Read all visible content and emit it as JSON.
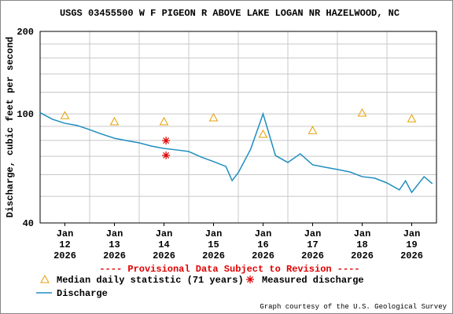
{
  "chart_data": {
    "type": "line",
    "title": "USGS 03455500 W F PIGEON R ABOVE LAKE LOGAN NR HAZELWOOD, NC",
    "ylabel": "Discharge, cubic feet per second",
    "yscale": "log",
    "ylim": [
      40,
      200
    ],
    "yticks": [
      40,
      100,
      200
    ],
    "minor_yticks": [
      50,
      60,
      70,
      80,
      90,
      120,
      140,
      160,
      180
    ],
    "xlim": [
      "2026-01-12T00:00",
      "2026-01-20T00:00"
    ],
    "xticks": [
      {
        "value": "2026-01-12T12:00",
        "label": [
          "Jan",
          "12",
          "2026"
        ]
      },
      {
        "value": "2026-01-13T12:00",
        "label": [
          "Jan",
          "13",
          "2026"
        ]
      },
      {
        "value": "2026-01-14T12:00",
        "label": [
          "Jan",
          "14",
          "2026"
        ]
      },
      {
        "value": "2026-01-15T12:00",
        "label": [
          "Jan",
          "15",
          "2026"
        ]
      },
      {
        "value": "2026-01-16T12:00",
        "label": [
          "Jan",
          "16",
          "2026"
        ]
      },
      {
        "value": "2026-01-17T12:00",
        "label": [
          "Jan",
          "17",
          "2026"
        ]
      },
      {
        "value": "2026-01-18T12:00",
        "label": [
          "Jan",
          "18",
          "2026"
        ]
      },
      {
        "value": "2026-01-19T12:00",
        "label": [
          "Jan",
          "19",
          "2026"
        ]
      }
    ],
    "xgrid": [
      "2026-01-13T00:00",
      "2026-01-14T00:00",
      "2026-01-15T00:00",
      "2026-01-16T00:00",
      "2026-01-17T00:00",
      "2026-01-18T00:00",
      "2026-01-19T00:00"
    ],
    "grid": true,
    "note": "---- Provisional Data Subject to Revision ----",
    "credit": "Graph courtesy of the U.S. Geological Survey",
    "series": [
      {
        "name": "Discharge",
        "color": "#1f8ec0",
        "style": "line",
        "x": [
          "2026-01-12T00:00",
          "2026-01-12T06:00",
          "2026-01-12T12:00",
          "2026-01-12T18:00",
          "2026-01-13T00:00",
          "2026-01-13T06:00",
          "2026-01-13T12:00",
          "2026-01-13T18:00",
          "2026-01-14T00:00",
          "2026-01-14T06:00",
          "2026-01-14T12:00",
          "2026-01-14T18:00",
          "2026-01-15T00:00",
          "2026-01-15T06:00",
          "2026-01-15T12:00",
          "2026-01-15T18:00",
          "2026-01-15T21:00",
          "2026-01-16T00:00",
          "2026-01-16T06:00",
          "2026-01-16T12:00",
          "2026-01-16T18:00",
          "2026-01-17T00:00",
          "2026-01-17T06:00",
          "2026-01-17T12:00",
          "2026-01-17T18:00",
          "2026-01-18T00:00",
          "2026-01-18T06:00",
          "2026-01-18T12:00",
          "2026-01-18T18:00",
          "2026-01-19T00:00",
          "2026-01-19T06:00",
          "2026-01-19T09:00",
          "2026-01-19T12:00",
          "2026-01-19T18:00",
          "2026-01-19T22:00"
        ],
        "values": [
          101,
          95.6,
          92.4,
          90.7,
          87.6,
          84.3,
          81.5,
          79.9,
          78.4,
          76.3,
          74.8,
          73.9,
          72.9,
          69.6,
          67,
          64.3,
          57.1,
          61,
          74.4,
          100,
          70.5,
          66.5,
          71.5,
          65.2,
          63.9,
          62.7,
          61.4,
          59,
          58.3,
          56,
          52.8,
          57,
          51.7,
          59,
          55.6
        ]
      },
      {
        "name": "Median daily statistic (71 years)",
        "color": "#e6a000",
        "style": "triangle",
        "x": [
          "2026-01-12T12:00",
          "2026-01-13T12:00",
          "2026-01-14T12:00",
          "2026-01-15T12:00",
          "2026-01-16T12:00",
          "2026-01-17T12:00",
          "2026-01-18T12:00",
          "2026-01-19T12:00"
        ],
        "values": [
          98.6,
          93.7,
          93.7,
          96.8,
          84.3,
          87,
          100.7,
          96
        ]
      },
      {
        "name": "Measured discharge",
        "color": "#e00000",
        "style": "star",
        "x": [
          "2026-01-14T13:00",
          "2026-01-14T13:00"
        ],
        "values": [
          79.9,
          70.6
        ]
      }
    ]
  }
}
